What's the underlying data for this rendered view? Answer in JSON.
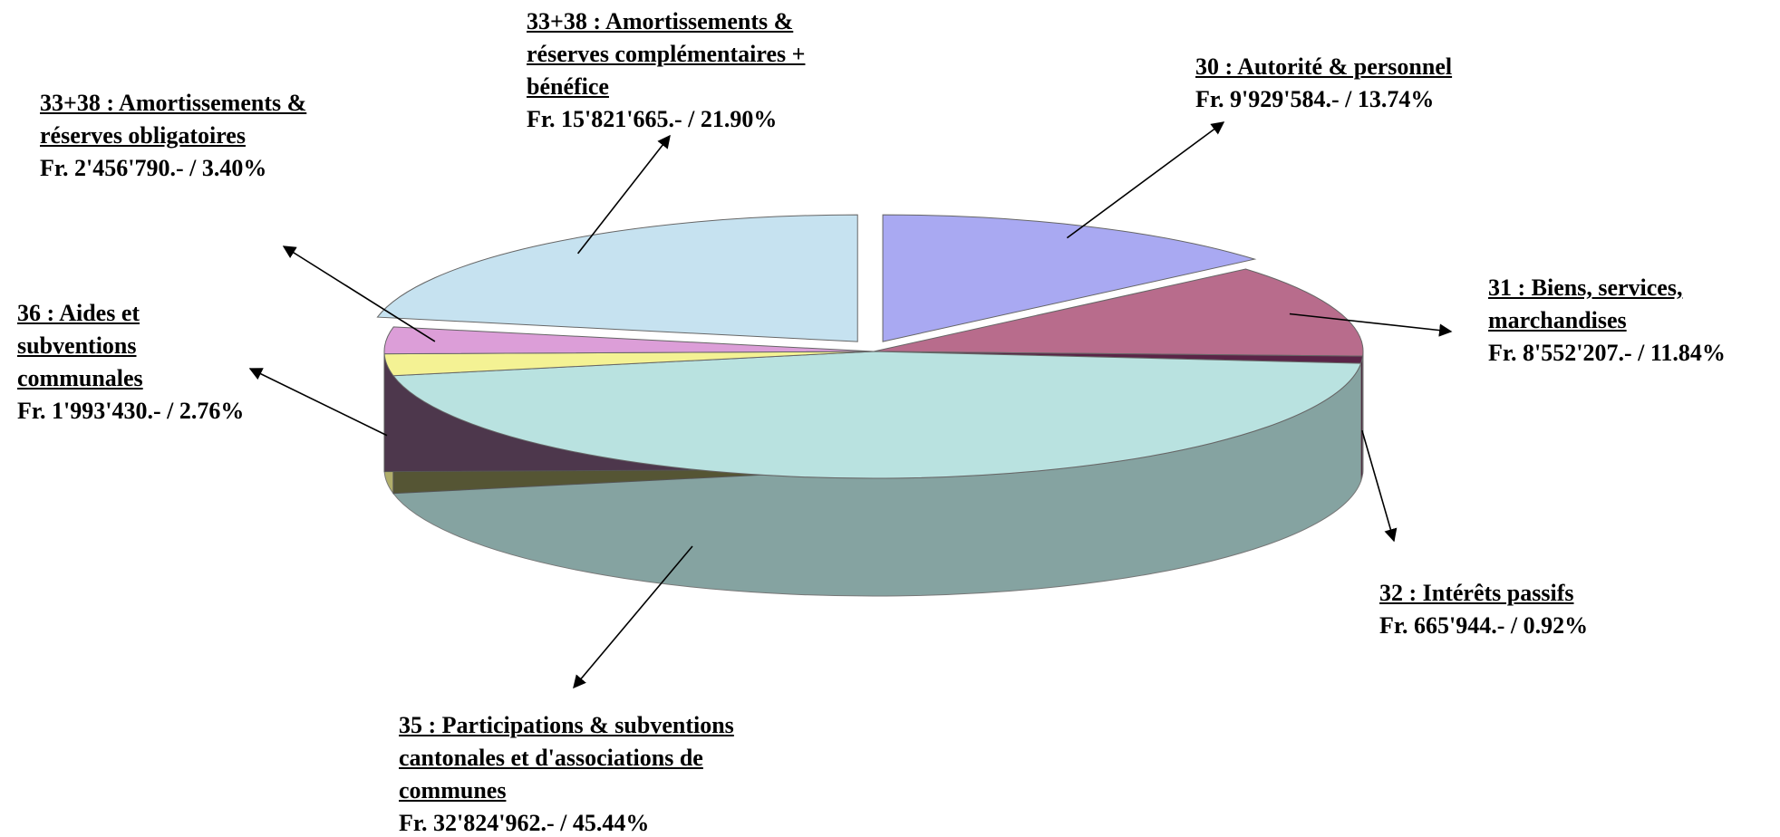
{
  "chart_data": {
    "type": "pie",
    "categories": [
      "30 : Autorité & personnel",
      "31 : Biens, services, marchandises",
      "32 : Intérêts passifs",
      "35 : Participations & subventions cantonales et d'associations de communes",
      "36 : Aides et subventions communales",
      "33+38 : Amortissements & réserves obligatoires",
      "33+38 : Amortissements & réserves complémentaires + bénéfice"
    ],
    "values": [
      13.74,
      11.84,
      0.92,
      45.44,
      2.76,
      3.4,
      21.9
    ],
    "value_labels": [
      "Fr. 9'929'584.- / 13.74%",
      "Fr. 8'552'207.- / 11.84%",
      "Fr. 665'944.- / 0.92%",
      "Fr. 32'824'962.- / 45.44%",
      "Fr. 1'993'430.- / 2.76%",
      "Fr. 2'456'790.- / 3.40%",
      "Fr. 15'821'665.- / 21.90%"
    ],
    "colors": [
      "#a9a9f2",
      "#b86c8c",
      "#5a2447",
      "#b9e2e0",
      "#f4f294",
      "#dc9ed8",
      "#c6e2f0"
    ]
  }
}
